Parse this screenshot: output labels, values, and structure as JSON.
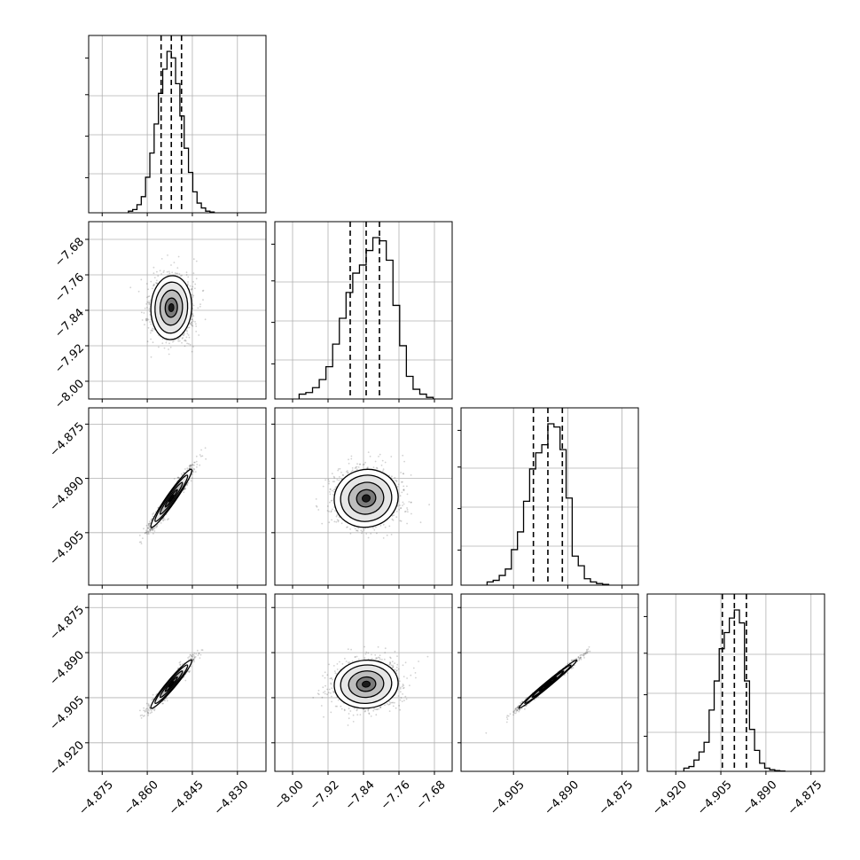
{
  "chart_data": {
    "type": "corner",
    "grid": true,
    "num_params": 4,
    "axis_ranges": [
      [
        -4.8795,
        -4.8205
      ],
      [
        -8.04,
        -7.64
      ],
      [
        -4.9195,
        -4.8705
      ],
      [
        -4.9295,
        -4.8705
      ]
    ],
    "tick_labels": [
      [
        "−4.875",
        "−4.860",
        "−4.845",
        "−4.830"
      ],
      [
        "−8.00",
        "−7.92",
        "−7.84",
        "−7.76",
        "−7.68"
      ],
      [
        "−4.905",
        "−4.890",
        "−4.875"
      ],
      [
        "−4.920",
        "−4.905",
        "−4.890",
        "−4.875"
      ]
    ],
    "tick_values": [
      [
        -4.875,
        -4.86,
        -4.845,
        -4.83
      ],
      [
        -8.0,
        -7.92,
        -7.84,
        -7.76,
        -7.68
      ],
      [
        -4.905,
        -4.89,
        -4.875
      ],
      [
        -4.92,
        -4.905,
        -4.89,
        -4.875
      ]
    ],
    "row_tick_labels": [
      null,
      [
        "−7.68",
        "−7.76",
        "−7.84",
        "−7.92",
        "−8.00"
      ],
      [
        "−4.875",
        "−4.890",
        "−4.905"
      ],
      [
        "−4.875",
        "−4.890",
        "−4.905",
        "−4.920"
      ]
    ],
    "row_tick_values": [
      null,
      [
        -7.68,
        -7.76,
        -7.84,
        -7.92,
        -8.0
      ],
      [
        -4.875,
        -4.89,
        -4.905
      ],
      [
        -4.875,
        -4.89,
        -4.905,
        -4.92
      ]
    ],
    "parameters": [
      {
        "mean": -4.852,
        "sd": 0.0034,
        "quantiles": [
          -4.8554,
          -4.852,
          -4.8486
        ]
      },
      {
        "mean": -7.834,
        "sd": 0.036,
        "quantiles": [
          -7.87,
          -7.834,
          -7.804
        ]
      },
      {
        "mean": -4.8955,
        "sd": 0.004,
        "quantiles": [
          -4.8995,
          -4.8955,
          -4.8915
        ]
      },
      {
        "mean": -4.9005,
        "sd": 0.004,
        "quantiles": [
          -4.9045,
          -4.9005,
          -4.8965
        ]
      }
    ],
    "correlations": [
      [
        1,
        0.05,
        0.96,
        0.96
      ],
      [
        0.05,
        1,
        0.05,
        0.05
      ],
      [
        0.96,
        0.05,
        1,
        0.99
      ],
      [
        0.96,
        0.05,
        0.99,
        1
      ]
    ],
    "histograms": [
      {
        "bins": 20,
        "relative_heights": [
          0.01,
          0.02,
          0.05,
          0.1,
          0.22,
          0.37,
          0.55,
          0.74,
          0.89,
          1.0,
          0.96,
          0.8,
          0.6,
          0.4,
          0.25,
          0.13,
          0.06,
          0.03,
          0.01,
          0.005
        ]
      },
      {
        "bins": 20,
        "relative_heights": [
          0.03,
          0.04,
          0.07,
          0.12,
          0.2,
          0.34,
          0.5,
          0.66,
          0.78,
          0.83,
          0.92,
          1.0,
          0.98,
          0.86,
          0.58,
          0.33,
          0.14,
          0.06,
          0.03,
          0.01
        ]
      },
      {
        "bins": 20,
        "relative_heights": [
          0.02,
          0.03,
          0.06,
          0.1,
          0.22,
          0.33,
          0.52,
          0.72,
          0.82,
          0.87,
          1.0,
          0.98,
          0.84,
          0.54,
          0.18,
          0.12,
          0.04,
          0.02,
          0.01,
          0.005
        ]
      },
      {
        "bins": 20,
        "relative_heights": [
          0.02,
          0.03,
          0.07,
          0.12,
          0.18,
          0.38,
          0.56,
          0.76,
          0.86,
          0.95,
          1.0,
          0.92,
          0.56,
          0.26,
          0.13,
          0.05,
          0.02,
          0.01,
          0.005,
          0.002
        ]
      }
    ],
    "contour_levels": [
      0.118,
      0.393,
      0.675,
      0.864
    ]
  }
}
